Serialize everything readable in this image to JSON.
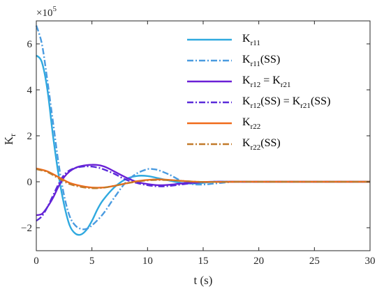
{
  "chart_data": {
    "type": "line",
    "xlabel": "t (s)",
    "ylabel": "K",
    "ylabel_sub": "r",
    "y_multiplier": "×10",
    "y_multiplier_exp": "5",
    "xlim": [
      0,
      30
    ],
    "ylim": [
      -3,
      7
    ],
    "x_ticks": [
      0,
      5,
      10,
      15,
      20,
      25,
      30
    ],
    "y_ticks": [
      -2,
      0,
      2,
      4,
      6
    ],
    "grid": false,
    "legend_position": "top-right",
    "series": [
      {
        "label": "Kr11",
        "label_main": "K",
        "label_sub": "r11",
        "label_rest": "",
        "color": "#2fa9df",
        "dash": "solid",
        "x": [
          0,
          0.5,
          1,
          1.5,
          2,
          2.5,
          3,
          3.5,
          4,
          4.5,
          5,
          5.5,
          6,
          7,
          8,
          9,
          10,
          11,
          12,
          13,
          14,
          15,
          16,
          18,
          20,
          25,
          30
        ],
        "y": [
          5.5,
          5.2,
          4.0,
          2.0,
          0.3,
          -1.0,
          -1.9,
          -2.25,
          -2.3,
          -2.1,
          -1.7,
          -1.2,
          -0.8,
          -0.25,
          0.1,
          0.25,
          0.25,
          0.15,
          0.05,
          -0.05,
          -0.08,
          -0.05,
          0.0,
          0.0,
          0.0,
          0.0,
          0.0
        ]
      },
      {
        "label": "Kr11(SS)",
        "label_main": "K",
        "label_sub": "r11",
        "label_rest": "(SS)",
        "color": "#4a9be0",
        "dash": "dashdot",
        "x": [
          0,
          0.5,
          1,
          1.5,
          2,
          2.5,
          3,
          3.5,
          4,
          4.5,
          5,
          6,
          7,
          8,
          9,
          10,
          10.5,
          11,
          12,
          13,
          14,
          15,
          16,
          17,
          18,
          20,
          25,
          30
        ],
        "y": [
          6.8,
          6.0,
          4.4,
          2.6,
          0.8,
          -0.6,
          -1.5,
          -1.9,
          -2.05,
          -2.05,
          -1.9,
          -1.4,
          -0.7,
          -0.05,
          0.35,
          0.55,
          0.55,
          0.5,
          0.3,
          0.05,
          -0.1,
          -0.12,
          -0.08,
          -0.03,
          0.0,
          0.0,
          0.0,
          0.0
        ]
      },
      {
        "label": "Kr12 = Kr21",
        "label_main": "K",
        "label_sub": "r12",
        "label_rest": " = K",
        "label_sub2": "r21",
        "label_rest2": "",
        "color": "#6a1fd6",
        "dash": "solid",
        "x": [
          0,
          0.5,
          1,
          1.5,
          2,
          2.5,
          3,
          3.5,
          4,
          4.5,
          5,
          5.5,
          6,
          6.5,
          7,
          8,
          9,
          10,
          11,
          12,
          13,
          14,
          15,
          16,
          18,
          20,
          25,
          30
        ],
        "y": [
          -1.45,
          -1.4,
          -1.1,
          -0.7,
          -0.2,
          0.2,
          0.45,
          0.6,
          0.68,
          0.72,
          0.74,
          0.73,
          0.68,
          0.58,
          0.45,
          0.2,
          0.0,
          -0.1,
          -0.15,
          -0.13,
          -0.08,
          -0.04,
          -0.01,
          0.0,
          0.0,
          0.0,
          0.0,
          0.0
        ]
      },
      {
        "label": "Kr12(SS) = Kr21(SS)",
        "label_main": "K",
        "label_sub": "r12",
        "label_rest": "(SS) = K",
        "label_sub2": "r21",
        "label_rest2": "(SS)",
        "color": "#5a2bd9",
        "dash": "dashdot",
        "x": [
          0,
          0.5,
          1,
          1.5,
          2,
          2.5,
          3,
          3.5,
          4,
          4.5,
          5,
          5.5,
          6,
          7,
          8,
          9,
          10,
          11,
          12,
          13,
          14,
          15,
          16,
          18,
          20,
          25,
          30
        ],
        "y": [
          -1.7,
          -1.5,
          -1.1,
          -0.6,
          -0.1,
          0.3,
          0.5,
          0.6,
          0.65,
          0.67,
          0.66,
          0.62,
          0.55,
          0.35,
          0.1,
          -0.05,
          -0.15,
          -0.2,
          -0.18,
          -0.12,
          -0.06,
          -0.02,
          0.0,
          0.0,
          0.0,
          0.0,
          0.0
        ]
      },
      {
        "label": "Kr22",
        "label_main": "K",
        "label_sub": "r22",
        "label_rest": "",
        "color": "#f06a1a",
        "dash": "solid",
        "x": [
          0,
          1,
          2,
          3,
          4,
          5,
          6,
          7,
          8,
          9,
          10,
          11,
          12,
          13,
          14,
          15,
          16,
          18,
          20,
          25,
          30
        ],
        "y": [
          0.58,
          0.45,
          0.2,
          -0.05,
          -0.18,
          -0.25,
          -0.25,
          -0.18,
          -0.08,
          0.02,
          0.08,
          0.1,
          0.08,
          0.04,
          0.01,
          -0.01,
          -0.01,
          0.0,
          0.0,
          0.0,
          0.0
        ]
      },
      {
        "label": "Kr22(SS)",
        "label_main": "K",
        "label_sub": "r22",
        "label_rest": "(SS)",
        "color": "#c27a2a",
        "dash": "dashdot",
        "x": [
          0,
          1,
          2,
          3,
          4,
          5,
          6,
          7,
          8,
          9,
          10,
          11,
          12,
          13,
          14,
          15,
          16,
          18,
          20,
          25,
          30
        ],
        "y": [
          0.55,
          0.42,
          0.15,
          -0.1,
          -0.22,
          -0.28,
          -0.26,
          -0.18,
          -0.08,
          0.0,
          0.06,
          0.08,
          0.07,
          0.04,
          0.01,
          -0.01,
          -0.01,
          0.0,
          0.0,
          0.0,
          0.0
        ]
      }
    ]
  }
}
